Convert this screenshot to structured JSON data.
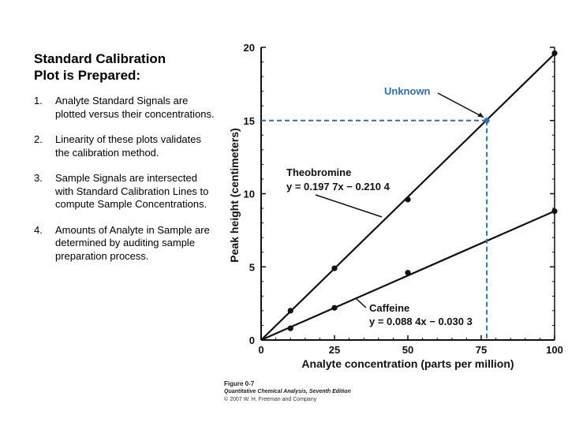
{
  "slide": {
    "title_lines": [
      "Standard Calibration",
      "Plot is Prepared:"
    ],
    "steps": [
      {
        "num": "1.",
        "text": "Analyte Standard Signals are plotted versus their concentrations."
      },
      {
        "num": "2.",
        "text": "Linearity of these plots validates the calibration method."
      },
      {
        "num": "3.",
        "text": "Sample Signals are intersected with Standard Calibration Lines to compute Sample Concentrations."
      },
      {
        "num": "4.",
        "text": "Amounts of Analyte in Sample are determined by auditing sample preparation process."
      }
    ]
  },
  "chart_data": {
    "type": "scatter",
    "xlabel": "Analyte concentration (parts per million)",
    "ylabel": "Peak height (centimeters)",
    "xlim": [
      0,
      100
    ],
    "ylim": [
      0,
      20
    ],
    "x_ticks": [
      0,
      25,
      50,
      75,
      100
    ],
    "y_ticks": [
      0,
      5,
      10,
      15,
      20
    ],
    "series": [
      {
        "name": "Theobromine",
        "equation": "y = 0.197 7x − 0.210 4",
        "slope": 0.1977,
        "intercept": -0.2104,
        "x": [
          10,
          25,
          50,
          100
        ],
        "y": [
          2.0,
          4.9,
          9.6,
          19.6
        ]
      },
      {
        "name": "Caffeine",
        "equation": "y = 0.088 4x − 0.030 3",
        "slope": 0.0884,
        "intercept": -0.0303,
        "x": [
          10,
          25,
          50,
          100
        ],
        "y": [
          0.8,
          2.2,
          4.6,
          8.8
        ]
      }
    ],
    "unknown": {
      "label": "Unknown",
      "x": 76.9,
      "y": 15.0
    },
    "figure_caption": [
      "Figure 0-7",
      "Quantitative Chemical Analysis, Seventh Edition",
      "© 2007 W. H. Freeman and Company"
    ],
    "colors": {
      "axis": "#111111",
      "line": "#111111",
      "point": "#111111",
      "unknown": "#2e6fb8"
    }
  }
}
